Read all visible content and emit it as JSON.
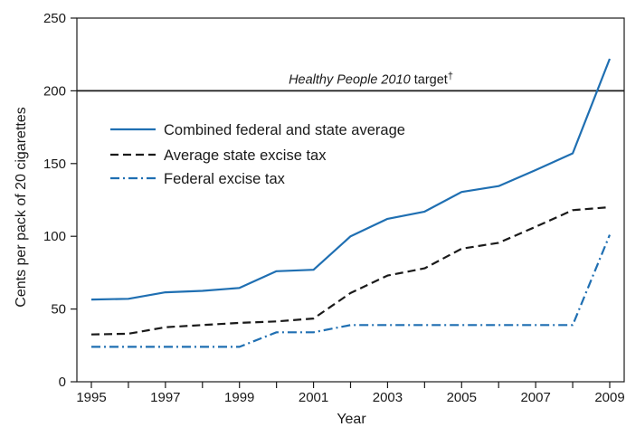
{
  "chart_data": {
    "type": "line",
    "xlabel": "Year",
    "ylabel": "Cents per pack of 20 cigarettes",
    "ylim": [
      0,
      250
    ],
    "xlim": [
      1995,
      2009
    ],
    "x": [
      1995,
      1996,
      1997,
      1998,
      1999,
      2000,
      2001,
      2002,
      2003,
      2004,
      2005,
      2006,
      2007,
      2008,
      2009
    ],
    "x_ticks": [
      1995,
      1997,
      1999,
      2001,
      2003,
      2005,
      2007,
      2009
    ],
    "y_ticks": [
      0,
      50,
      100,
      150,
      200,
      250
    ],
    "grid": false,
    "legend_position": "upper-left",
    "series": [
      {
        "name": "Combined federal and state average",
        "color": "#1f6fb2",
        "dash": "solid",
        "values": [
          56.5,
          57,
          61.5,
          62.5,
          64.5,
          76,
          77,
          100,
          112,
          117,
          130.5,
          134.5,
          145.5,
          157,
          222
        ]
      },
      {
        "name": "Average state excise tax",
        "color": "#1a1a1a",
        "dash": "dashed",
        "values": [
          32.5,
          33,
          37.5,
          39,
          40.5,
          41.5,
          43.5,
          61,
          73,
          78,
          91.5,
          95.5,
          106.5,
          118,
          120
        ]
      },
      {
        "name": "Federal excise tax",
        "color": "#1f6fb2",
        "dash": "dashdot",
        "values": [
          24,
          24,
          24,
          24,
          24,
          34,
          34,
          39,
          39,
          39,
          39,
          39,
          39,
          39,
          101
        ]
      }
    ],
    "reference_line": {
      "value": 200,
      "label_italic": "Healthy People 2010",
      "label_rest": " target",
      "label_mark": "†"
    }
  }
}
